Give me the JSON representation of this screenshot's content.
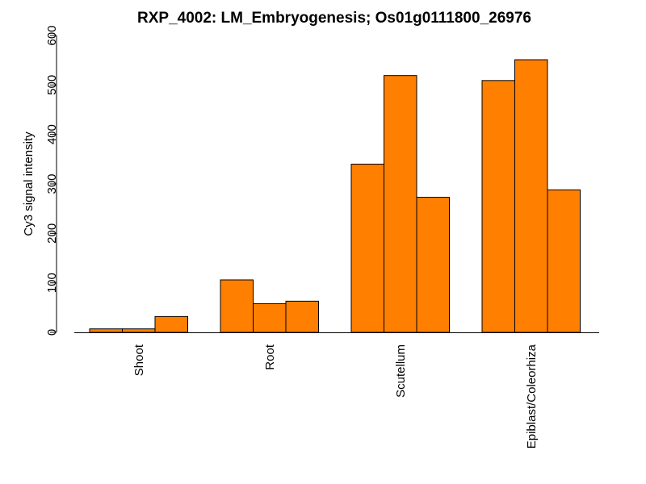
{
  "chart_data": {
    "type": "bar",
    "title": "RXP_4002: LM_Embryogenesis; Os01g0111800_26976",
    "ylabel": "Cy3 signal intensity",
    "xlabel": "",
    "ylim": [
      0,
      600
    ],
    "yticks": [
      0,
      100,
      200,
      300,
      400,
      500,
      600
    ],
    "bar_color": "#FF7F00",
    "categories": [
      "Shoot",
      "Root",
      "Scutellum",
      "Epiblast/Coleorhiza"
    ],
    "groups": [
      {
        "category": "Shoot",
        "values": [
          7,
          7,
          32
        ]
      },
      {
        "category": "Root",
        "values": [
          106,
          58,
          63
        ]
      },
      {
        "category": "Scutellum",
        "values": [
          340,
          519,
          273
        ]
      },
      {
        "category": "Epiblast/Coleorhiza",
        "values": [
          509,
          551,
          288
        ]
      }
    ],
    "grid": false,
    "legend": "none"
  }
}
